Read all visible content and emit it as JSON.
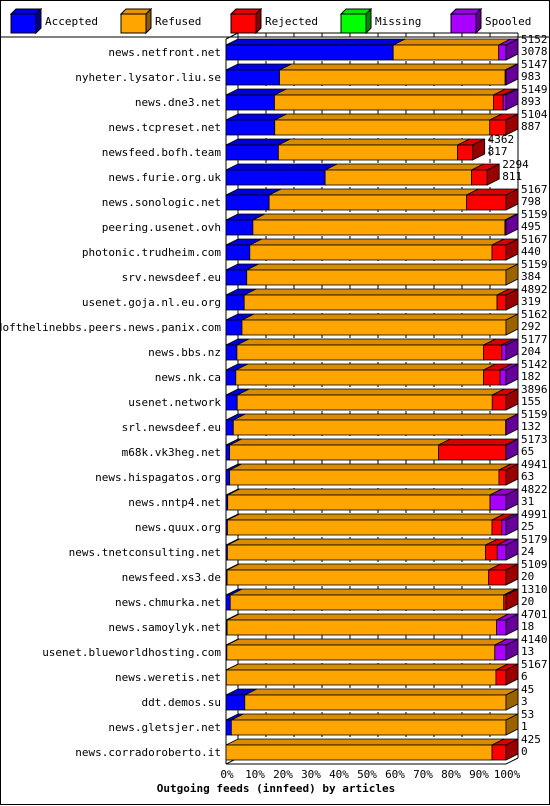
{
  "chart_data": {
    "type": "bar",
    "orientation": "horizontal",
    "stacked": true,
    "percent_stacked": true,
    "title": "Outgoing feeds (innfeed) by articles",
    "xlim": [
      0,
      100
    ],
    "x_ticks": [
      "0%",
      "10%",
      "20%",
      "30%",
      "40%",
      "50%",
      "60%",
      "70%",
      "80%",
      "90%",
      "100%"
    ],
    "grid": true,
    "legend_position": "top",
    "legend": [
      {
        "name": "Accepted",
        "color": "#0000ff"
      },
      {
        "name": "Refused",
        "color": "#ffa500"
      },
      {
        "name": "Rejected",
        "color": "#ff0000"
      },
      {
        "name": "Missing",
        "color": "#00ff00"
      },
      {
        "name": "Spooled",
        "color": "#aa00ff"
      }
    ],
    "categories": [
      "news.netfront.net",
      "nyheter.lysator.liu.se",
      "news.dne3.net",
      "news.tcpreset.net",
      "newsfeed.bofh.team",
      "news.furie.org.uk",
      "news.sonologic.net",
      "peering.usenet.ovh",
      "photonic.trudheim.com",
      "srv.newsdeef.eu",
      "usenet.goja.nl.eu.org",
      "endofthelinebbs.peers.news.panix.com",
      "news.bbs.nz",
      "news.nk.ca",
      "usenet.network",
      "srl.newsdeef.eu",
      "m68k.vk3heg.net",
      "news.hispagatos.org",
      "news.nntp4.net",
      "news.quux.org",
      "news.tnetconsulting.net",
      "newsfeed.xs3.de",
      "news.chmurka.net",
      "news.samoylyk.net",
      "usenet.blueworldhosting.com",
      "news.weretis.net",
      "ddt.demos.su",
      "news.gletsjer.net",
      "news.corradoroberto.it"
    ],
    "offered": [
      5152,
      5147,
      5149,
      5104,
      4362,
      2294,
      5167,
      5159,
      5167,
      5159,
      4892,
      5162,
      5177,
      5142,
      3896,
      5159,
      5173,
      4941,
      4822,
      4991,
      5179,
      5109,
      1310,
      4701,
      4140,
      5167,
      45,
      53,
      425
    ],
    "accepted": [
      3078,
      983,
      893,
      887,
      817,
      811,
      798,
      495,
      440,
      384,
      319,
      292,
      204,
      182,
      155,
      132,
      65,
      63,
      31,
      25,
      24,
      20,
      20,
      18,
      13,
      6,
      3,
      1,
      0
    ],
    "series_percent": [
      {
        "name": "Accepted",
        "values": [
          59.7,
          19.1,
          17.3,
          17.4,
          18.7,
          35.4,
          15.4,
          9.6,
          8.5,
          7.4,
          6.5,
          5.7,
          3.9,
          3.5,
          4.0,
          2.6,
          1.3,
          1.3,
          0.6,
          0.5,
          0.5,
          0.4,
          1.5,
          0.4,
          0.3,
          0.1,
          6.7,
          1.9,
          0.0
        ]
      },
      {
        "name": "Refused",
        "values": [
          37.7,
          80.6,
          78.2,
          76.8,
          64.0,
          52.3,
          70.5,
          90.0,
          86.5,
          92.6,
          90.3,
          94.3,
          88.1,
          88.5,
          91.1,
          97.3,
          74.6,
          96.2,
          93.7,
          94.5,
          92.2,
          93.4,
          97.7,
          96.2,
          95.7,
          96.3,
          93.3,
          98.1,
          95.0
        ]
      },
      {
        "name": "Rejected",
        "values": [
          0,
          0,
          3.5,
          5.8,
          5.4,
          5.6,
          14.1,
          0,
          5.0,
          0,
          3.2,
          0,
          6.5,
          5.9,
          4.9,
          0,
          24.0,
          2.5,
          0,
          3.5,
          4.2,
          6.2,
          0.8,
          0,
          0,
          3.6,
          0,
          0,
          5.0
        ]
      },
      {
        "name": "Missing",
        "values": [
          0,
          0,
          0,
          0,
          0,
          0,
          0,
          0,
          0,
          0,
          0,
          0,
          0,
          0,
          0,
          0,
          0,
          0,
          0,
          0,
          0,
          0,
          0,
          0,
          0,
          0,
          0,
          0,
          0
        ]
      },
      {
        "name": "Spooled",
        "values": [
          2.6,
          0.3,
          1.0,
          0,
          0,
          0,
          0,
          0.4,
          0,
          0,
          0,
          0,
          1.5,
          2.1,
          0,
          0.1,
          0.1,
          0,
          5.7,
          1.5,
          3.1,
          0,
          0,
          3.4,
          4.0,
          0,
          0,
          0,
          0
        ]
      }
    ]
  }
}
